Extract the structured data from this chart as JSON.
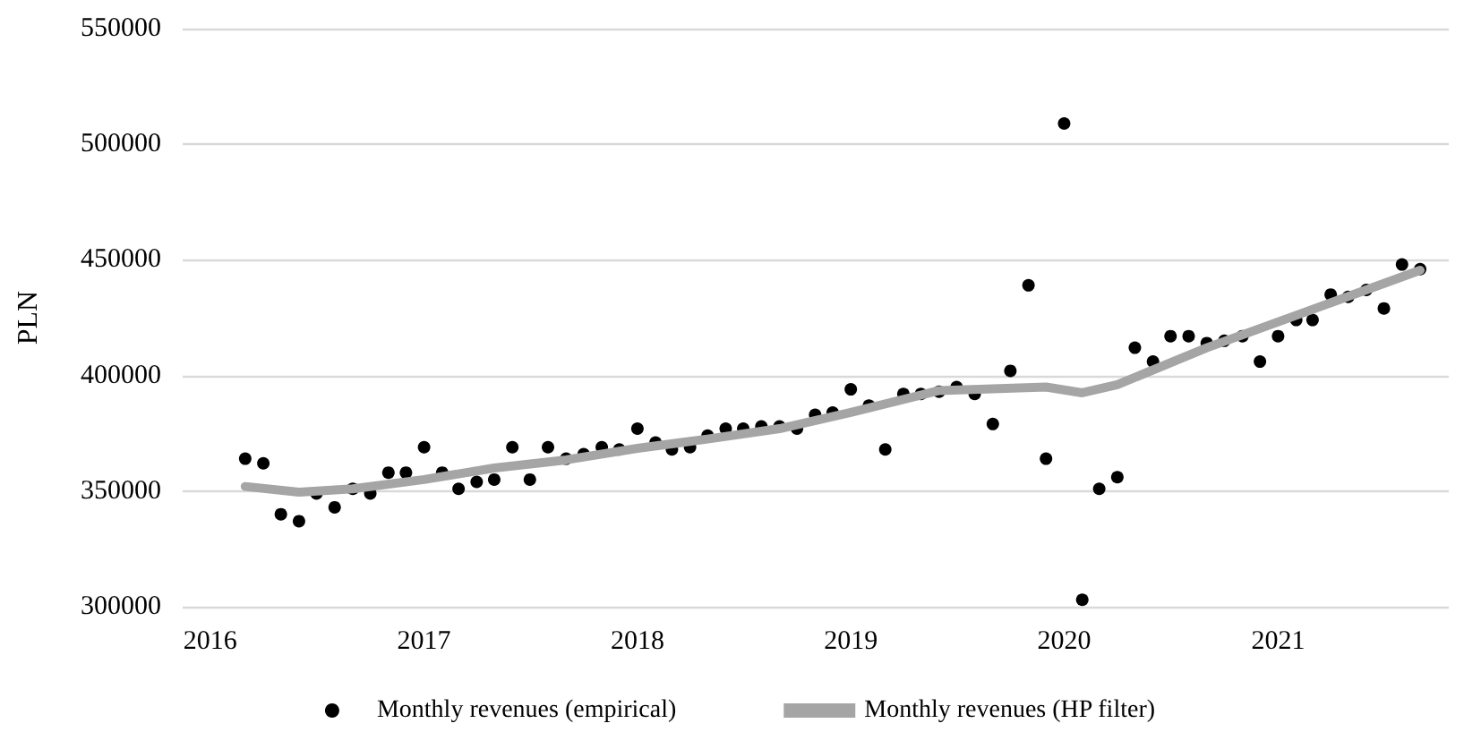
{
  "chart_data": {
    "type": "scatter",
    "ylabel": "PLN",
    "ylim": [
      300000,
      550000
    ],
    "yticks": [
      300000,
      350000,
      400000,
      450000,
      500000,
      550000
    ],
    "xlim": [
      "2015-11-15",
      "2021-10-20"
    ],
    "xticks": [
      "2016",
      "2017",
      "2018",
      "2019",
      "2020",
      "2021"
    ],
    "grid": "y",
    "legend": "bottom",
    "series": [
      {
        "name": "Monthly revenues (empirical)",
        "marker": "circle",
        "color": "#000000",
        "x": [
          "2016-03",
          "2016-04",
          "2016-05",
          "2016-06",
          "2016-07",
          "2016-08",
          "2016-09",
          "2016-10",
          "2016-11",
          "2016-12",
          "2017-01",
          "2017-02",
          "2017-03",
          "2017-04",
          "2017-05",
          "2017-06",
          "2017-07",
          "2017-08",
          "2017-09",
          "2017-10",
          "2017-11",
          "2017-12",
          "2018-01",
          "2018-02",
          "2018-03",
          "2018-04",
          "2018-05",
          "2018-06",
          "2018-07",
          "2018-08",
          "2018-09",
          "2018-10",
          "2018-11",
          "2018-12",
          "2019-01",
          "2019-02",
          "2019-03",
          "2019-04",
          "2019-05",
          "2019-06",
          "2019-07",
          "2019-08",
          "2019-09",
          "2019-10",
          "2019-11",
          "2019-12",
          "2020-01",
          "2020-02",
          "2020-03",
          "2020-04",
          "2020-05",
          "2020-06",
          "2020-07",
          "2020-08",
          "2020-09",
          "2020-10",
          "2020-11",
          "2020-12",
          "2021-01",
          "2021-02",
          "2021-03",
          "2021-04",
          "2021-05",
          "2021-06",
          "2021-07",
          "2021-08",
          "2021-09"
        ],
        "values": [
          364000,
          362000,
          340000,
          337000,
          349000,
          343000,
          351000,
          349000,
          358000,
          358000,
          369000,
          358000,
          351000,
          354000,
          355000,
          369000,
          355000,
          369000,
          364000,
          366000,
          369000,
          368000,
          377000,
          371000,
          368000,
          369000,
          374000,
          377000,
          377000,
          378000,
          378000,
          377000,
          383000,
          384000,
          394000,
          387000,
          368000,
          392000,
          392000,
          393000,
          395000,
          392000,
          379000,
          402000,
          439000,
          364000,
          509000,
          303000,
          351000,
          356000,
          412000,
          406000,
          417000,
          417000,
          414000,
          415000,
          417000,
          406000,
          417000,
          424000,
          424000,
          435000,
          434000,
          437000,
          429000,
          448000,
          446000
        ]
      },
      {
        "name": "Monthly revenues (HP filter)",
        "type": "line",
        "marker": "none",
        "color": "#a5a5a5",
        "x": [
          "2016-03",
          "2016-06",
          "2016-09",
          "2017-01",
          "2017-05",
          "2017-09",
          "2018-01",
          "2018-05",
          "2018-09",
          "2019-01",
          "2019-06",
          "2019-12",
          "2020-02",
          "2020-04",
          "2020-09",
          "2021-02",
          "2021-09"
        ],
        "values": [
          352000,
          349500,
          351000,
          355000,
          360000,
          363500,
          368500,
          372500,
          377000,
          384000,
          393500,
          395000,
          392500,
          396000,
          412000,
          426000,
          445500
        ]
      }
    ]
  }
}
